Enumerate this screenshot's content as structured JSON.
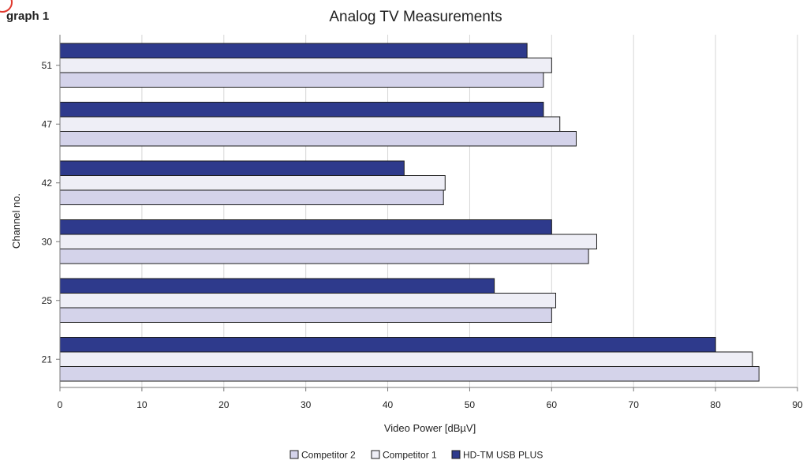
{
  "page_label": "graph 1",
  "chart_data": {
    "type": "bar",
    "orientation": "horizontal",
    "title": "Analog TV Measurements",
    "xlabel": "Video Power [dBµV]",
    "ylabel": "Channel no.",
    "xlim": [
      0,
      90
    ],
    "xticks": [
      0,
      10,
      20,
      30,
      40,
      50,
      60,
      70,
      80,
      90
    ],
    "grid": true,
    "legend_position": "bottom",
    "categories": [
      "51",
      "47",
      "42",
      "30",
      "25",
      "21"
    ],
    "series": [
      {
        "name": "HD-TM USB PLUS",
        "color": "#2e3a8c",
        "values": [
          57,
          59,
          42,
          60,
          53,
          80
        ]
      },
      {
        "name": "Competitor 1",
        "color": "#eeeef6",
        "values": [
          60,
          61,
          47,
          65.5,
          60.5,
          84.5
        ]
      },
      {
        "name": "Competitor 2",
        "color": "#d4d3ea",
        "values": [
          59,
          63,
          46.8,
          64.5,
          60,
          85.3
        ]
      }
    ],
    "legend_order": [
      "Competitor 2",
      "Competitor 1",
      "HD-TM USB PLUS"
    ]
  }
}
